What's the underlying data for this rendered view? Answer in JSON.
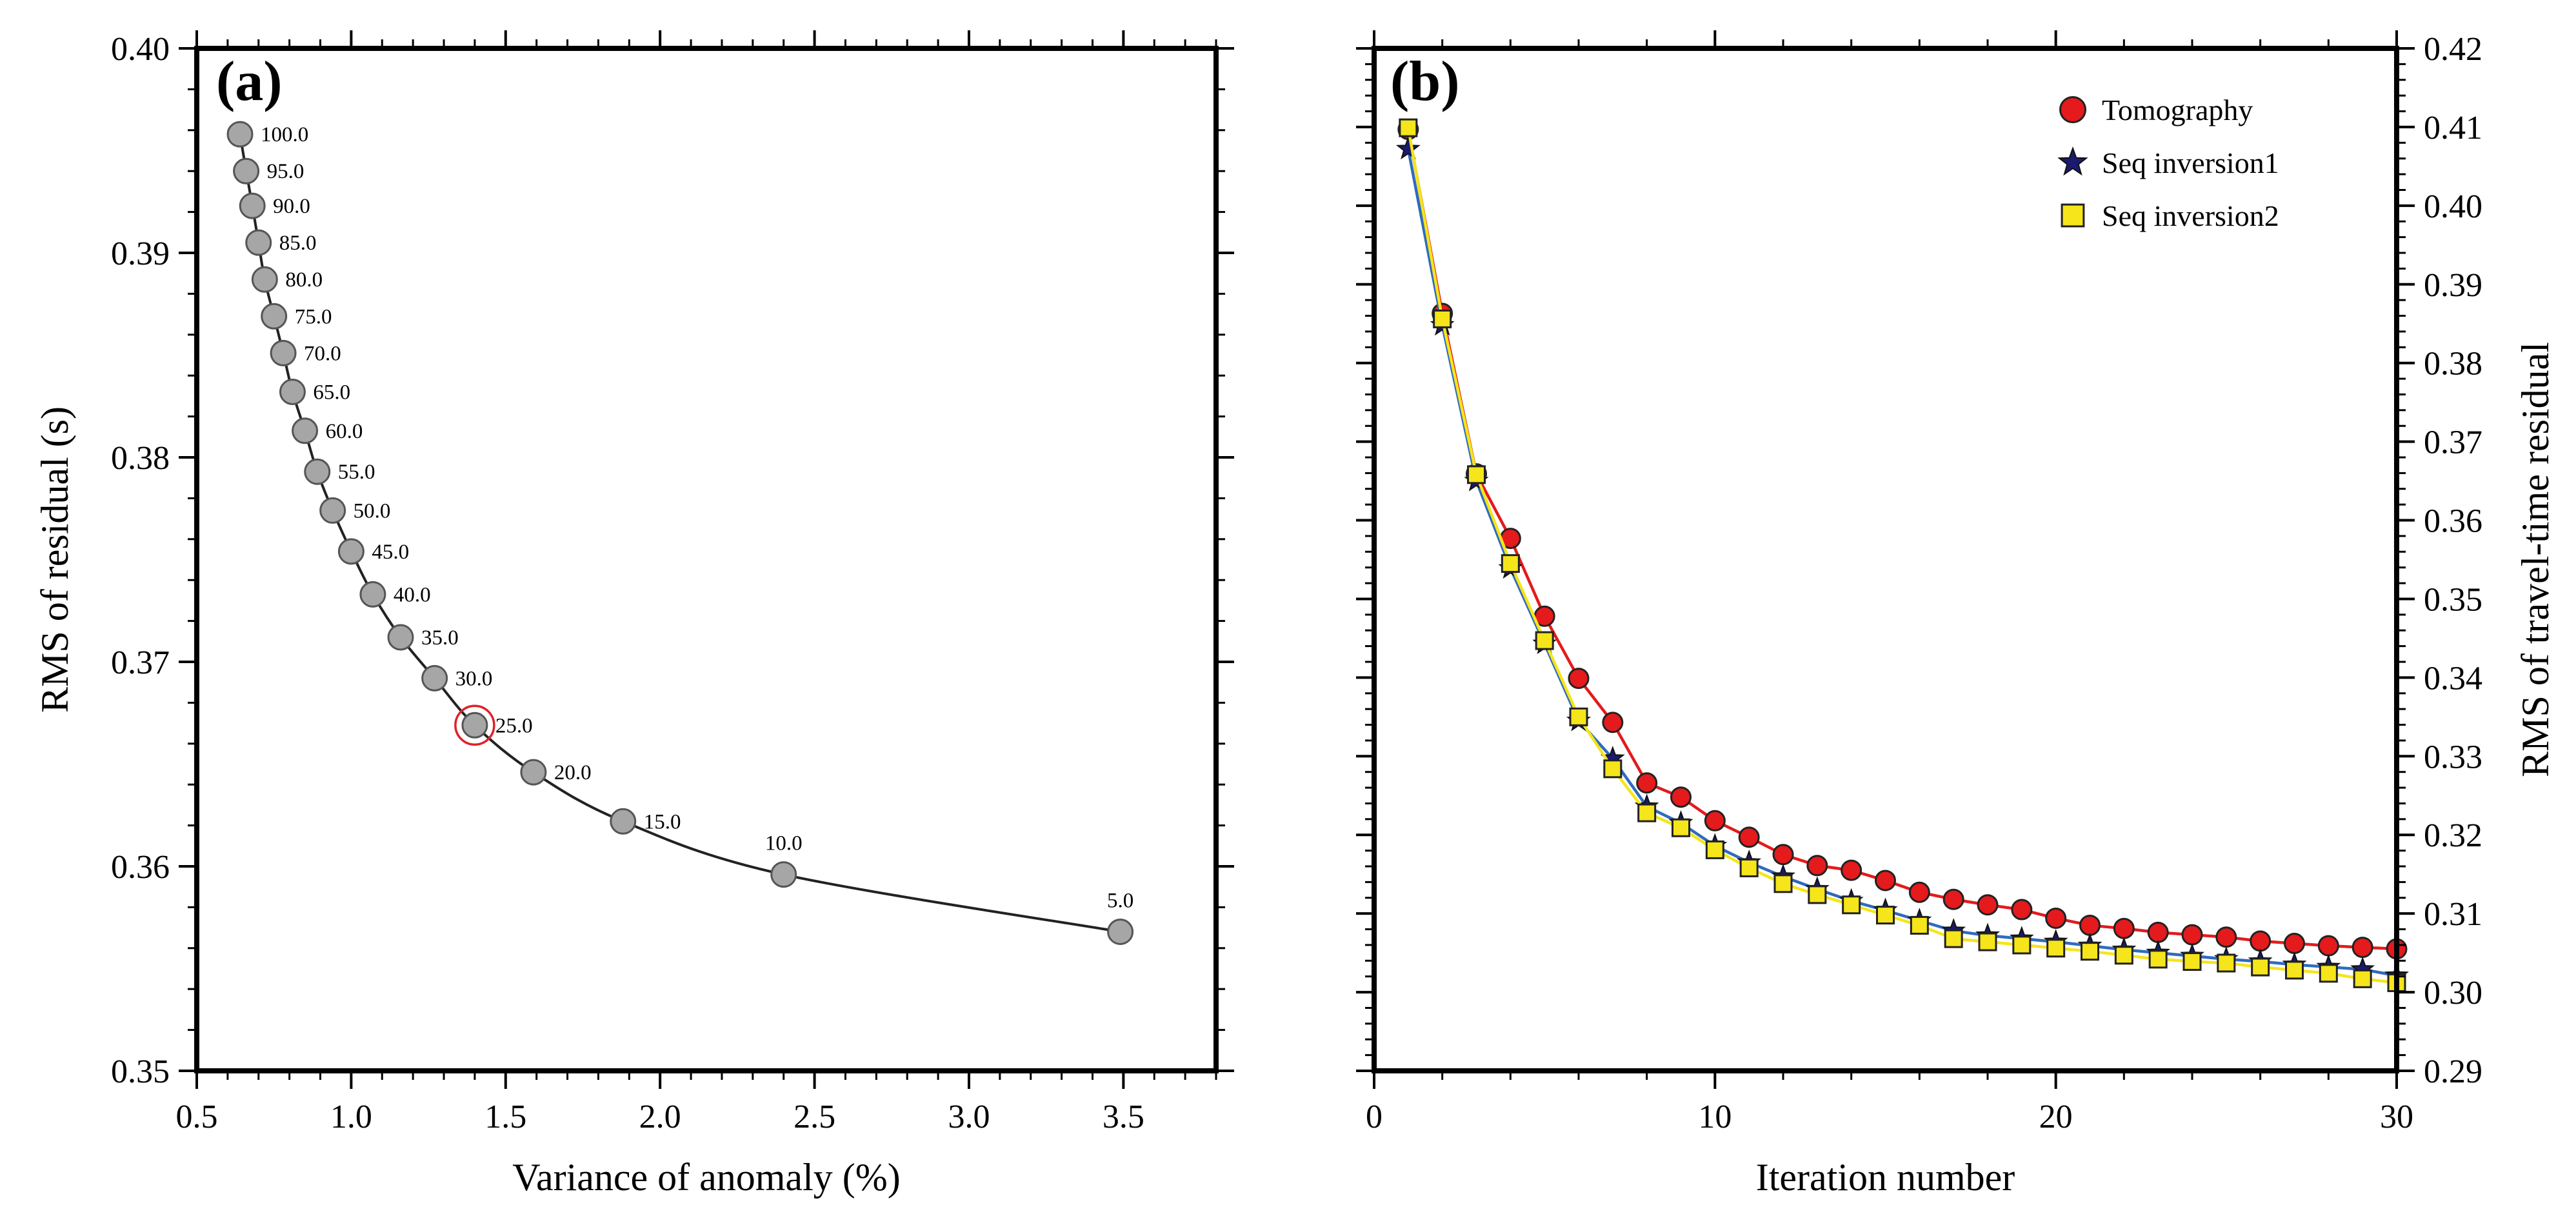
{
  "chart_data": [
    {
      "panel": "a",
      "panel_label": "(a)",
      "type": "line",
      "xlabel": "Variance of anomaly (%)",
      "ylabel": "RMS of residual (s)",
      "xlim": [
        0.5,
        3.8
      ],
      "ylim": [
        0.35,
        0.4
      ],
      "xticks": [
        0.5,
        1.0,
        1.5,
        2.0,
        2.5,
        3.0,
        3.5
      ],
      "xtick_labels": [
        "0.5",
        "1.0",
        "1.5",
        "2.0",
        "2.5",
        "3.0",
        "3.5"
      ],
      "yticks": [
        0.35,
        0.36,
        0.37,
        0.38,
        0.39,
        0.4
      ],
      "ytick_labels": [
        "0.35",
        "0.36",
        "0.37",
        "0.38",
        "0.39",
        "0.40"
      ],
      "grid": false,
      "highlighted_label": "25.0",
      "highlight_color": "#e0202a",
      "marker_color": "#a6a6a6",
      "points": [
        {
          "label": "100.0",
          "x": 0.64,
          "y": 0.3958
        },
        {
          "label": "95.0",
          "x": 0.66,
          "y": 0.394
        },
        {
          "label": "90.0",
          "x": 0.68,
          "y": 0.3923
        },
        {
          "label": "85.0",
          "x": 0.7,
          "y": 0.3905
        },
        {
          "label": "80.0",
          "x": 0.72,
          "y": 0.3887
        },
        {
          "label": "75.0",
          "x": 0.75,
          "y": 0.3869
        },
        {
          "label": "70.0",
          "x": 0.78,
          "y": 0.3851
        },
        {
          "label": "65.0",
          "x": 0.81,
          "y": 0.3832
        },
        {
          "label": "60.0",
          "x": 0.85,
          "y": 0.3813
        },
        {
          "label": "55.0",
          "x": 0.89,
          "y": 0.3793
        },
        {
          "label": "50.0",
          "x": 0.94,
          "y": 0.3774
        },
        {
          "label": "45.0",
          "x": 1.0,
          "y": 0.3754
        },
        {
          "label": "40.0",
          "x": 1.07,
          "y": 0.3733
        },
        {
          "label": "35.0",
          "x": 1.16,
          "y": 0.3712
        },
        {
          "label": "30.0",
          "x": 1.27,
          "y": 0.3692
        },
        {
          "label": "25.0",
          "x": 1.4,
          "y": 0.3669
        },
        {
          "label": "20.0",
          "x": 1.59,
          "y": 0.3646
        },
        {
          "label": "15.0",
          "x": 1.88,
          "y": 0.3622
        },
        {
          "label": "10.0",
          "x": 2.4,
          "y": 0.3596
        },
        {
          "label": "5.0",
          "x": 3.49,
          "y": 0.3568
        }
      ]
    },
    {
      "panel": "b",
      "panel_label": "(b)",
      "type": "line",
      "xlabel": "Iteration number",
      "ylabel": "RMS of travel-time residual",
      "xlim": [
        0,
        30
      ],
      "ylim": [
        0.29,
        0.42
      ],
      "xticks": [
        0,
        10,
        20,
        30
      ],
      "xtick_labels": [
        "0",
        "10",
        "20",
        "30"
      ],
      "yticks": [
        0.29,
        0.3,
        0.31,
        0.32,
        0.33,
        0.34,
        0.35,
        0.36,
        0.37,
        0.38,
        0.39,
        0.4,
        0.41,
        0.42
      ],
      "ytick_labels": [
        "0.29",
        "0.30",
        "0.31",
        "0.32",
        "0.33",
        "0.34",
        "0.35",
        "0.36",
        "0.37",
        "0.38",
        "0.39",
        "0.40",
        "0.41",
        "0.42"
      ],
      "grid": false,
      "legend_position": "top-right",
      "x": [
        1,
        2,
        3,
        4,
        5,
        6,
        7,
        8,
        9,
        10,
        11,
        12,
        13,
        14,
        15,
        16,
        17,
        18,
        19,
        20,
        21,
        22,
        23,
        24,
        25,
        26,
        27,
        28,
        29,
        30
      ],
      "series": [
        {
          "name": "Tomography",
          "marker": "circle",
          "color": "#e41a1c",
          "line_color": "#e41a1c",
          "values": [
            0.4097,
            0.3863,
            0.3659,
            0.3577,
            0.3478,
            0.3399,
            0.3343,
            0.3266,
            0.3248,
            0.3218,
            0.3197,
            0.3175,
            0.3161,
            0.3155,
            0.3142,
            0.3127,
            0.3118,
            0.3111,
            0.3105,
            0.3094,
            0.3085,
            0.3081,
            0.3076,
            0.3073,
            0.307,
            0.3065,
            0.3062,
            0.3059,
            0.3057,
            0.3055
          ]
        },
        {
          "name": "Seq inversion1",
          "marker": "star",
          "color": "#1a1a6e",
          "line_color": "#2f6bbf",
          "values": [
            0.4072,
            0.3848,
            0.365,
            0.3539,
            0.3443,
            0.3345,
            0.3297,
            0.3236,
            0.3215,
            0.3186,
            0.3165,
            0.3147,
            0.3131,
            0.3116,
            0.3104,
            0.3091,
            0.3078,
            0.3072,
            0.3068,
            0.3064,
            0.3059,
            0.3054,
            0.305,
            0.3046,
            0.3042,
            0.3039,
            0.3035,
            0.3032,
            0.3029,
            0.3021
          ]
        },
        {
          "name": "Seq inversion2",
          "marker": "square",
          "color": "#f5e51a",
          "line_color": "#f5e51a",
          "values": [
            0.4099,
            0.3856,
            0.3658,
            0.3545,
            0.3447,
            0.335,
            0.3284,
            0.3228,
            0.3209,
            0.3181,
            0.3158,
            0.3138,
            0.3124,
            0.3111,
            0.3098,
            0.3085,
            0.3068,
            0.3064,
            0.306,
            0.3056,
            0.3052,
            0.3047,
            0.3042,
            0.3039,
            0.3037,
            0.3032,
            0.3028,
            0.3024,
            0.3017,
            0.3012
          ]
        }
      ]
    }
  ]
}
